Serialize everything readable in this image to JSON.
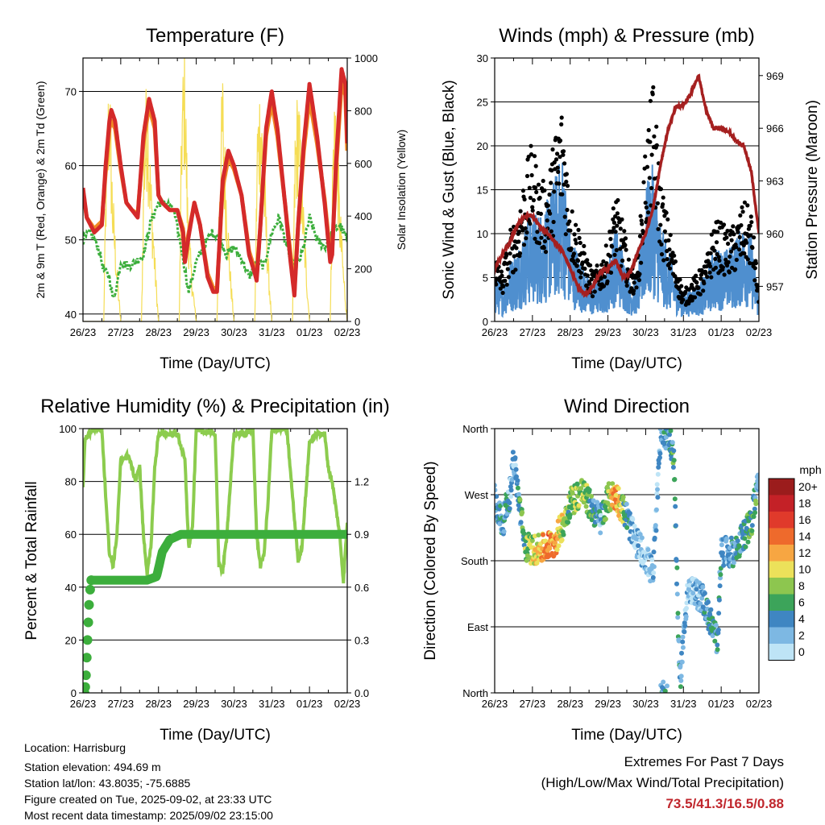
{
  "chart_data": [
    {
      "type": "line",
      "title": "Temperature (F)",
      "xlabel": "Time (Day/UTC)",
      "ylabel": "2m & 9m T (Red, Orange) & 2m Td (Green)",
      "y2label": "Solar Insolation (Yellow)",
      "xticks": [
        "26/23",
        "27/23",
        "28/23",
        "29/23",
        "30/23",
        "31/23",
        "01/23",
        "02/23"
      ],
      "ylim": [
        39,
        74.5
      ],
      "yticks": [
        40,
        50,
        60,
        70
      ],
      "y2lim": [
        0,
        1000
      ],
      "y2ticks": [
        0,
        200,
        400,
        600,
        800,
        1000
      ],
      "grid": true,
      "series": [
        {
          "name": "2m T",
          "color": "#d42a2a",
          "x": [
            0,
            0.1,
            0.3,
            0.5,
            0.6,
            0.7,
            0.75,
            0.85,
            1.0,
            1.15,
            1.3,
            1.45,
            1.6,
            1.75,
            1.9,
            2.0,
            2.1,
            2.3,
            2.5,
            2.65,
            2.7,
            2.8,
            2.95,
            3.1,
            3.3,
            3.45,
            3.55,
            3.6,
            3.7,
            3.85,
            4.0,
            4.2,
            4.4,
            4.55,
            4.6,
            4.7,
            4.85,
            5.0,
            5.15,
            5.35,
            5.5,
            5.6,
            5.7,
            5.85,
            6.0,
            6.2,
            6.4,
            6.55,
            6.6,
            6.7,
            6.85,
            6.95,
            7.0
          ],
          "y": [
            57,
            53,
            51,
            52,
            60,
            66,
            67.5,
            66,
            60,
            55,
            54,
            53,
            64,
            69,
            66,
            56,
            55,
            54,
            54,
            51,
            47,
            50.5,
            55,
            52,
            45,
            43,
            43,
            48,
            58,
            62,
            60,
            56,
            48,
            45.5,
            44.5,
            52,
            65,
            70,
            65,
            55,
            47,
            42.5,
            52,
            63,
            71,
            64,
            55,
            47,
            48,
            60,
            73,
            71,
            63
          ]
        },
        {
          "name": "9m T",
          "color": "#f08a24",
          "x": [
            0,
            0.1,
            0.3,
            0.5,
            0.6,
            0.7,
            0.75,
            0.85,
            1.0,
            1.15,
            1.3,
            1.45,
            1.6,
            1.75,
            1.9,
            2.0,
            2.1,
            2.3,
            2.5,
            2.65,
            2.7,
            2.8,
            2.95,
            3.1,
            3.3,
            3.45,
            3.55,
            3.6,
            3.7,
            3.85,
            4.0,
            4.2,
            4.4,
            4.55,
            4.6,
            4.7,
            4.85,
            5.0,
            5.15,
            5.35,
            5.5,
            5.6,
            5.7,
            5.85,
            6.0,
            6.2,
            6.4,
            6.55,
            6.6,
            6.7,
            6.85,
            6.95,
            7.0
          ],
          "y": [
            56.5,
            53,
            51.5,
            52.5,
            59,
            65,
            66,
            65,
            59.5,
            55,
            54,
            53.5,
            63,
            68,
            65,
            56,
            55,
            54,
            54,
            51.5,
            48,
            51,
            55,
            52,
            45.5,
            43.5,
            43.5,
            48,
            57,
            61,
            59.5,
            56,
            48.5,
            46,
            45,
            52,
            64,
            68.5,
            64,
            55,
            48,
            43,
            52,
            62,
            69,
            63,
            55.5,
            48,
            48.5,
            59,
            71,
            69.5,
            62
          ]
        },
        {
          "name": "2m Td",
          "color": "#3cae3c",
          "x": [
            0,
            0.2,
            0.4,
            0.55,
            0.7,
            0.8,
            0.9,
            1.0,
            1.2,
            1.4,
            1.6,
            1.8,
            2.0,
            2.2,
            2.4,
            2.6,
            2.8,
            2.9,
            3.0,
            3.2,
            3.4,
            3.6,
            3.8,
            4.0,
            4.2,
            4.4,
            4.6,
            4.8,
            5.0,
            5.2,
            5.4,
            5.6,
            5.8,
            6.0,
            6.2,
            6.4,
            6.6,
            6.8,
            7.0
          ],
          "y": [
            50,
            51,
            49,
            46,
            45,
            42,
            44,
            47,
            46.5,
            47,
            48,
            52.5,
            55,
            55,
            54,
            49,
            43,
            45,
            47,
            49,
            51,
            50.5,
            48,
            49,
            47.5,
            45,
            47,
            46.5,
            51,
            53,
            49,
            46,
            48,
            53,
            50,
            49,
            51,
            52,
            50
          ]
        },
        {
          "name": "Solar Insolation",
          "color": "#f5dd55",
          "axis": "y2",
          "x": [
            0,
            0.55,
            0.62,
            0.7,
            0.78,
            0.9,
            1.0,
            1.55,
            1.62,
            1.7,
            1.78,
            1.9,
            2.0,
            2.55,
            2.62,
            2.7,
            2.78,
            2.9,
            3.0,
            3.55,
            3.62,
            3.7,
            3.78,
            3.9,
            4.0,
            4.55,
            4.62,
            4.7,
            4.78,
            4.9,
            5.0,
            5.55,
            5.62,
            5.7,
            5.78,
            5.9,
            6.0,
            6.55,
            6.62,
            6.7,
            6.78,
            6.9,
            7.0
          ],
          "y": [
            0,
            0,
            650,
            950,
            500,
            200,
            0,
            0,
            700,
            900,
            600,
            250,
            0,
            0,
            850,
            1000,
            400,
            150,
            0,
            0,
            600,
            900,
            550,
            200,
            0,
            0,
            750,
            880,
            650,
            250,
            0,
            0,
            700,
            860,
            600,
            250,
            0,
            0,
            700,
            900,
            500,
            200,
            0
          ]
        }
      ]
    },
    {
      "type": "scatter",
      "title": "Winds (mph) & Pressure (mb)",
      "xlabel": "Time (Day/UTC)",
      "ylabel": "Sonic Wind & Gust (Blue, Black)",
      "y2label": "Station Pressure (Maroon)",
      "xticks": [
        "26/23",
        "27/23",
        "28/23",
        "29/23",
        "30/23",
        "31/23",
        "01/23",
        "02/23"
      ],
      "ylim": [
        0,
        30
      ],
      "yticks": [
        0,
        5,
        10,
        15,
        20,
        25,
        30
      ],
      "y2lim": [
        955,
        970
      ],
      "y2ticks": [
        957,
        960,
        963,
        966,
        969
      ],
      "grid": true,
      "series": [
        {
          "name": "Sonic Wind",
          "color": "#4f8fcf",
          "x": [
            0,
            0.2,
            0.4,
            0.6,
            0.8,
            1.0,
            1.2,
            1.4,
            1.6,
            1.8,
            2.0,
            2.2,
            2.4,
            2.6,
            2.8,
            3.0,
            3.2,
            3.4,
            3.6,
            3.8,
            4.0,
            4.2,
            4.4,
            4.6,
            4.8,
            5.0,
            5.2,
            5.4,
            5.6,
            5.8,
            6.0,
            6.2,
            6.4,
            6.6,
            6.8,
            7.0
          ],
          "y": [
            4,
            3,
            5,
            6,
            8,
            9,
            9,
            10,
            12,
            14,
            7,
            6,
            4,
            3,
            4,
            5,
            8,
            6,
            3,
            4,
            11,
            13,
            8,
            6,
            4,
            2,
            3,
            3,
            4,
            6,
            6,
            6,
            7,
            8,
            7,
            2
          ]
        },
        {
          "name": "Gust",
          "color": "#000000",
          "x": [
            0,
            0.2,
            0.4,
            0.6,
            0.8,
            1.0,
            1.2,
            1.4,
            1.6,
            1.8,
            2.0,
            2.2,
            2.4,
            2.6,
            2.8,
            3.0,
            3.2,
            3.4,
            3.6,
            3.8,
            4.0,
            4.2,
            4.4,
            4.6,
            4.8,
            5.0,
            5.2,
            5.4,
            5.6,
            5.8,
            6.0,
            6.2,
            6.4,
            6.6,
            6.8,
            7.0
          ],
          "y": [
            7,
            5,
            9,
            11,
            15,
            18,
            14,
            14,
            19,
            22,
            12,
            10,
            7,
            5,
            6,
            8,
            13,
            10,
            5,
            7,
            18,
            24,
            14,
            10,
            6,
            3,
            4,
            5,
            6,
            10,
            10,
            9,
            10,
            12,
            11,
            3
          ]
        },
        {
          "name": "Station Pressure",
          "color": "#a52020",
          "axis": "y2",
          "x": [
            0,
            0.2,
            0.4,
            0.6,
            0.8,
            1.0,
            1.2,
            1.4,
            1.6,
            1.8,
            2.0,
            2.2,
            2.4,
            2.6,
            2.8,
            3.0,
            3.2,
            3.4,
            3.6,
            3.8,
            4.0,
            4.2,
            4.4,
            4.6,
            4.8,
            5.0,
            5.2,
            5.4,
            5.6,
            5.8,
            6.0,
            6.2,
            6.4,
            6.6,
            6.8,
            7.0
          ],
          "y": [
            958,
            958.8,
            959.5,
            960.5,
            961,
            961,
            960.4,
            960,
            959.5,
            959,
            958,
            957,
            956.5,
            957,
            957.8,
            958,
            958.5,
            957.5,
            957.8,
            959,
            960,
            961.5,
            964,
            966,
            967.2,
            967.3,
            968,
            969,
            967,
            966,
            966,
            965.8,
            965.3,
            965,
            963.5,
            960
          ]
        }
      ]
    },
    {
      "type": "line",
      "title": "Relative Humidity (%) & Precipitation (in)",
      "xlabel": "Time (Day/UTC)",
      "ylabel": "Percent & Total Rainfall",
      "xticks": [
        "26/23",
        "27/23",
        "28/23",
        "29/23",
        "30/23",
        "31/23",
        "01/23",
        "02/23"
      ],
      "ylim": [
        0,
        100
      ],
      "yticks": [
        0,
        20,
        40,
        60,
        80,
        100
      ],
      "y2lim": [
        0,
        1.5
      ],
      "y2ticks": [
        "0.0",
        "0.3",
        "0.6",
        "0.9",
        "1.2"
      ],
      "grid": true,
      "series": [
        {
          "name": "Relative Humidity",
          "color": "#8ccc4e",
          "x": [
            0,
            0.05,
            0.1,
            0.3,
            0.5,
            0.6,
            0.7,
            0.8,
            0.9,
            1.0,
            1.2,
            1.4,
            1.5,
            1.6,
            1.7,
            1.8,
            1.9,
            2.0,
            2.2,
            2.5,
            2.6,
            2.7,
            2.8,
            2.9,
            3.0,
            3.2,
            3.5,
            3.55,
            3.6,
            3.7,
            3.8,
            4.0,
            4.3,
            4.5,
            4.6,
            4.7,
            4.8,
            4.9,
            5.0,
            5.2,
            5.4,
            5.6,
            5.7,
            5.8,
            6.0,
            6.2,
            6.4,
            6.5,
            6.6,
            6.8,
            6.9,
            7.0
          ],
          "y": [
            77,
            95,
            97,
            100,
            100,
            75,
            53,
            48,
            60,
            88,
            90,
            80,
            86,
            60,
            45,
            55,
            85,
            98,
            98,
            98,
            93,
            88,
            55,
            62,
            100,
            99,
            98,
            75,
            48,
            46,
            58,
            98,
            98,
            100,
            60,
            48,
            53,
            72,
            99,
            100,
            100,
            66,
            50,
            55,
            95,
            98,
            98,
            85,
            80,
            60,
            42,
            65
          ]
        },
        {
          "name": "Total Rainfall",
          "color": "#3cae3c",
          "axis": "y2",
          "x": [
            0,
            0.03,
            0.06,
            0.1,
            0.15,
            0.2,
            1.0,
            1.7,
            1.95,
            2.1,
            2.3,
            2.6,
            3.0,
            4.0,
            5.0,
            6.0,
            7.0
          ],
          "y": [
            0.0,
            0.0,
            0.1,
            0.3,
            0.55,
            0.64,
            0.64,
            0.64,
            0.66,
            0.8,
            0.87,
            0.9,
            0.9,
            0.9,
            0.9,
            0.9,
            0.9
          ]
        }
      ]
    },
    {
      "type": "scatter",
      "title": "Wind Direction",
      "xlabel": "Time (Day/UTC)",
      "ylabel": "Direction (Colored By Speed)",
      "xticks": [
        "26/23",
        "27/23",
        "28/23",
        "29/23",
        "30/23",
        "31/23",
        "01/23",
        "02/23"
      ],
      "ylim": [
        0,
        360
      ],
      "yticks": [
        "North",
        "East",
        "South",
        "West",
        "North"
      ],
      "grid": true,
      "legend": {
        "title": "mph",
        "labels": [
          "20+",
          "18",
          "16",
          "14",
          "12",
          "10",
          "8",
          "6",
          "4",
          "2",
          "0"
        ],
        "colors": [
          "#9b1c1c",
          "#c42127",
          "#e03a2b",
          "#ee6a2c",
          "#f7a642",
          "#ece15a",
          "#8dc64f",
          "#3ca45a",
          "#3f86c2",
          "#7db8e3",
          "#bee4f6"
        ]
      },
      "series": [
        {
          "name": "Direction",
          "x": [
            0,
            0.2,
            0.4,
            0.5,
            0.8,
            1.0,
            1.2,
            1.4,
            1.6,
            1.8,
            2.0,
            2.3,
            2.6,
            2.8,
            3.0,
            3.2,
            3.5,
            3.7,
            4.0,
            4.2,
            4.4,
            4.6,
            4.75,
            4.9,
            5.1,
            5.3,
            5.5,
            5.7,
            5.9,
            6.0,
            6.2,
            6.4,
            6.6,
            6.8,
            7.0
          ],
          "y": [
            265,
            230,
            270,
            320,
            200,
            195,
            195,
            200,
            205,
            230,
            260,
            275,
            250,
            235,
            265,
            270,
            240,
            210,
            185,
            160,
            360,
            350,
            320,
            10,
            140,
            135,
            130,
            100,
            70,
            195,
            190,
            195,
            215,
            230,
            300
          ],
          "speeds": [
            4,
            6,
            4,
            3,
            8,
            10,
            12,
            14,
            13,
            10,
            8,
            10,
            6,
            4,
            8,
            14,
            6,
            3,
            2,
            2,
            4,
            5,
            6,
            5,
            2,
            3,
            4,
            5,
            6,
            4,
            3,
            5,
            6,
            8,
            4
          ]
        }
      ]
    }
  ],
  "info": {
    "location": "Location: Harrisburg",
    "elevation": "Station elevation: 494.69 m",
    "latlon": "Station lat/lon: 43.8035; -75.6885",
    "created": "Figure created on Tue, 2025-09-02, at 23:33 UTC",
    "recent": "Most recent data timestamp: 2025/09/02 23:15:00"
  },
  "extremes": {
    "title": "Extremes For Past 7 Days",
    "subtitle": "(High/Low/Max Wind/Total Precipitation)",
    "value": "73.5/41.3/16.5/0.88"
  }
}
